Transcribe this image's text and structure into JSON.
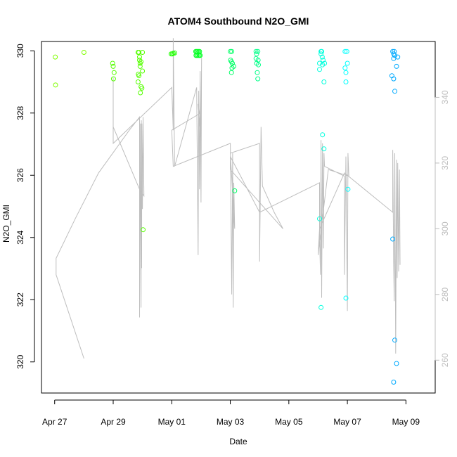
{
  "chart_data": {
    "type": "scatter",
    "title": "ATOM4 Southbound N2O_GMI",
    "xlabel": "Date",
    "ylabel": "N2O_GMI",
    "x_ticks": [
      "Apr 27",
      "Apr 29",
      "May 01",
      "May 03",
      "May 05",
      "May 07",
      "May 09"
    ],
    "x_tick_days": [
      0,
      2,
      4,
      6,
      8,
      10,
      12
    ],
    "xlim_days": [
      -0.45,
      13.0
    ],
    "ylim": [
      319.0,
      330.3
    ],
    "y_ticks": [
      320,
      322,
      324,
      326,
      328,
      330
    ],
    "y2_ticks": [
      260,
      280,
      300,
      320,
      340
    ],
    "y2lim": [
      250,
      357
    ],
    "grid": false,
    "colors": {
      "line": "#bebebe",
      "frame": "#000000",
      "right_axis": "#bdbdbd"
    },
    "series": [
      {
        "color": "#80ff00",
        "points": [
          {
            "x": 0.02,
            "y": 329.8
          },
          {
            "x": 0.03,
            "y": 328.9
          },
          {
            "x": 1.0,
            "y": 329.95
          }
        ]
      },
      {
        "color": "#55ff00",
        "points": [
          {
            "x": 1.98,
            "y": 329.6
          },
          {
            "x": 2.0,
            "y": 329.5
          },
          {
            "x": 2.03,
            "y": 329.3
          },
          {
            "x": 2.01,
            "y": 329.1
          },
          {
            "x": 2.85,
            "y": 329.95
          },
          {
            "x": 2.88,
            "y": 329.95
          },
          {
            "x": 2.9,
            "y": 329.8
          },
          {
            "x": 2.9,
            "y": 329.7
          },
          {
            "x": 2.92,
            "y": 329.6
          },
          {
            "x": 2.95,
            "y": 329.65
          },
          {
            "x": 2.92,
            "y": 329.5
          },
          {
            "x": 3.0,
            "y": 329.35
          },
          {
            "x": 2.86,
            "y": 329.25
          },
          {
            "x": 2.88,
            "y": 329.2
          },
          {
            "x": 2.85,
            "y": 329.0
          },
          {
            "x": 2.95,
            "y": 328.85
          },
          {
            "x": 2.98,
            "y": 328.8
          },
          {
            "x": 2.93,
            "y": 328.65
          },
          {
            "x": 3.0,
            "y": 329.95
          },
          {
            "x": 3.02,
            "y": 324.25
          }
        ]
      },
      {
        "color": "#1fff00",
        "points": [
          {
            "x": 3.98,
            "y": 329.9
          },
          {
            "x": 4.02,
            "y": 329.9
          },
          {
            "x": 4.05,
            "y": 329.92
          },
          {
            "x": 4.1,
            "y": 329.93
          }
        ]
      },
      {
        "color": "#00ff22",
        "points": [
          {
            "x": 4.82,
            "y": 329.98
          },
          {
            "x": 4.85,
            "y": 329.98
          },
          {
            "x": 4.88,
            "y": 329.98
          },
          {
            "x": 4.92,
            "y": 329.98
          },
          {
            "x": 4.95,
            "y": 329.98
          },
          {
            "x": 4.83,
            "y": 329.85
          },
          {
            "x": 4.86,
            "y": 329.85
          },
          {
            "x": 4.9,
            "y": 329.85
          },
          {
            "x": 4.94,
            "y": 329.85
          },
          {
            "x": 4.97,
            "y": 329.85
          }
        ]
      },
      {
        "color": "#00ff66",
        "points": [
          {
            "x": 6.0,
            "y": 329.98
          },
          {
            "x": 6.05,
            "y": 329.98
          },
          {
            "x": 6.01,
            "y": 329.7
          },
          {
            "x": 6.04,
            "y": 329.65
          },
          {
            "x": 6.07,
            "y": 329.6
          },
          {
            "x": 6.12,
            "y": 329.5
          },
          {
            "x": 6.06,
            "y": 329.45
          },
          {
            "x": 6.04,
            "y": 329.3
          },
          {
            "x": 6.15,
            "y": 325.5
          }
        ]
      },
      {
        "color": "#00ff88",
        "points": [
          {
            "x": 6.88,
            "y": 329.98
          },
          {
            "x": 6.94,
            "y": 329.98
          },
          {
            "x": 6.9,
            "y": 329.9
          },
          {
            "x": 6.88,
            "y": 329.75
          },
          {
            "x": 6.95,
            "y": 329.7
          },
          {
            "x": 6.9,
            "y": 329.6
          },
          {
            "x": 6.96,
            "y": 329.55
          },
          {
            "x": 6.92,
            "y": 329.3
          },
          {
            "x": 6.94,
            "y": 329.1
          }
        ]
      },
      {
        "color": "#00ffdd",
        "points": [
          {
            "x": 9.1,
            "y": 329.98
          },
          {
            "x": 9.12,
            "y": 329.98
          },
          {
            "x": 9.1,
            "y": 329.9
          },
          {
            "x": 9.14,
            "y": 329.8
          },
          {
            "x": 9.17,
            "y": 329.7
          },
          {
            "x": 9.05,
            "y": 329.6
          },
          {
            "x": 9.22,
            "y": 329.6
          },
          {
            "x": 9.15,
            "y": 329.55
          },
          {
            "x": 9.05,
            "y": 329.4
          },
          {
            "x": 9.2,
            "y": 329.0
          },
          {
            "x": 9.15,
            "y": 327.3
          },
          {
            "x": 9.2,
            "y": 326.85
          },
          {
            "x": 9.05,
            "y": 324.6
          },
          {
            "x": 9.1,
            "y": 321.75
          }
        ]
      },
      {
        "color": "#00ffff",
        "points": [
          {
            "x": 9.92,
            "y": 329.98
          },
          {
            "x": 9.98,
            "y": 329.98
          },
          {
            "x": 10.0,
            "y": 329.6
          },
          {
            "x": 9.92,
            "y": 329.45
          },
          {
            "x": 9.95,
            "y": 329.3
          },
          {
            "x": 9.95,
            "y": 329.0
          },
          {
            "x": 10.02,
            "y": 325.55
          },
          {
            "x": 9.95,
            "y": 322.05
          }
        ]
      },
      {
        "color": "#00aaff",
        "points": [
          {
            "x": 11.55,
            "y": 329.98
          },
          {
            "x": 11.6,
            "y": 329.98
          },
          {
            "x": 11.58,
            "y": 329.9
          },
          {
            "x": 11.62,
            "y": 329.85
          },
          {
            "x": 11.72,
            "y": 329.8
          },
          {
            "x": 11.58,
            "y": 329.75
          },
          {
            "x": 11.68,
            "y": 329.5
          },
          {
            "x": 11.52,
            "y": 329.2
          },
          {
            "x": 11.58,
            "y": 329.1
          },
          {
            "x": 11.62,
            "y": 328.7
          },
          {
            "x": 11.55,
            "y": 323.95
          },
          {
            "x": 11.62,
            "y": 320.7
          },
          {
            "x": 11.68,
            "y": 319.95
          },
          {
            "x": 11.58,
            "y": 319.35
          }
        ]
      }
    ],
    "line_series": {
      "color": "#bebebe",
      "axis": "right",
      "points": [
        {
          "x": 1.0,
          "y": 260.5
        },
        {
          "x": 0.05,
          "y": 286
        },
        {
          "x": 0.05,
          "y": 291
        },
        {
          "x": 0.7,
          "y": 303
        },
        {
          "x": 1.5,
          "y": 317
        },
        {
          "x": 2.55,
          "y": 330
        },
        {
          "x": 2.9,
          "y": 334
        },
        {
          "x": 2.9,
          "y": 273
        },
        {
          "x": 2.92,
          "y": 332
        },
        {
          "x": 2.95,
          "y": 276
        },
        {
          "x": 2.96,
          "y": 333
        },
        {
          "x": 2.97,
          "y": 288
        },
        {
          "x": 2.98,
          "y": 332
        },
        {
          "x": 3.0,
          "y": 306
        },
        {
          "x": 3.02,
          "y": 334
        },
        {
          "x": 3.05,
          "y": 310
        },
        {
          "x": 2.9,
          "y": 312
        },
        {
          "x": 2.0,
          "y": 331
        },
        {
          "x": 2.0,
          "y": 346
        },
        {
          "x": 2.0,
          "y": 326
        },
        {
          "x": 4.0,
          "y": 343
        },
        {
          "x": 4.05,
          "y": 330
        },
        {
          "x": 4.05,
          "y": 358
        },
        {
          "x": 4.1,
          "y": 319
        },
        {
          "x": 4.85,
          "y": 343
        },
        {
          "x": 4.9,
          "y": 292
        },
        {
          "x": 4.92,
          "y": 342
        },
        {
          "x": 4.95,
          "y": 312
        },
        {
          "x": 4.97,
          "y": 348
        },
        {
          "x": 5.0,
          "y": 308
        },
        {
          "x": 5.02,
          "y": 352
        },
        {
          "x": 5.0,
          "y": 326
        },
        {
          "x": 4.9,
          "y": 338
        },
        {
          "x": 4.95,
          "y": 335
        },
        {
          "x": 4.0,
          "y": 330
        },
        {
          "x": 4.05,
          "y": 319
        },
        {
          "x": 6.0,
          "y": 326
        },
        {
          "x": 6.05,
          "y": 280
        },
        {
          "x": 6.08,
          "y": 323
        },
        {
          "x": 6.1,
          "y": 276
        },
        {
          "x": 6.12,
          "y": 314
        },
        {
          "x": 6.15,
          "y": 300
        },
        {
          "x": 6.0,
          "y": 323
        },
        {
          "x": 6.0,
          "y": 323
        },
        {
          "x": 7.0,
          "y": 326
        },
        {
          "x": 7.0,
          "y": 290
        },
        {
          "x": 7.05,
          "y": 331
        },
        {
          "x": 7.1,
          "y": 313
        },
        {
          "x": 7.5,
          "y": 305
        },
        {
          "x": 7.8,
          "y": 300
        },
        {
          "x": 6.0,
          "y": 318
        },
        {
          "x": 6.0,
          "y": 322
        },
        {
          "x": 7.0,
          "y": 305
        },
        {
          "x": 9.05,
          "y": 314
        },
        {
          "x": 9.05,
          "y": 298
        },
        {
          "x": 9.08,
          "y": 286
        },
        {
          "x": 9.1,
          "y": 327
        },
        {
          "x": 9.12,
          "y": 279
        },
        {
          "x": 9.15,
          "y": 326
        },
        {
          "x": 9.18,
          "y": 294
        },
        {
          "x": 9.2,
          "y": 323
        },
        {
          "x": 9.22,
          "y": 319
        },
        {
          "x": 9.9,
          "y": 316
        },
        {
          "x": 9.9,
          "y": 286
        },
        {
          "x": 9.95,
          "y": 322
        },
        {
          "x": 10.0,
          "y": 275
        },
        {
          "x": 10.02,
          "y": 323
        },
        {
          "x": 10.05,
          "y": 316
        },
        {
          "x": 9.35,
          "y": 318
        },
        {
          "x": 9.05,
          "y": 296
        },
        {
          "x": 9.0,
          "y": 292
        },
        {
          "x": 9.05,
          "y": 300
        },
        {
          "x": 9.9,
          "y": 317
        },
        {
          "x": 11.55,
          "y": 305
        },
        {
          "x": 11.55,
          "y": 324
        },
        {
          "x": 11.58,
          "y": 290
        },
        {
          "x": 11.6,
          "y": 278
        },
        {
          "x": 11.62,
          "y": 323
        },
        {
          "x": 11.65,
          "y": 262
        },
        {
          "x": 11.68,
          "y": 321
        },
        {
          "x": 11.7,
          "y": 285
        },
        {
          "x": 11.72,
          "y": 320
        },
        {
          "x": 11.75,
          "y": 287
        },
        {
          "x": 11.78,
          "y": 318
        },
        {
          "x": 11.8,
          "y": 289
        }
      ]
    }
  }
}
